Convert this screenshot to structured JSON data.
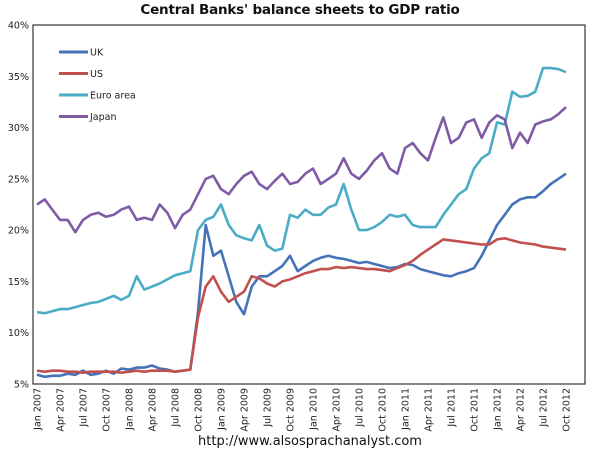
{
  "chart_data": {
    "type": "line",
    "title": "Central Banks' balance sheets to GDP ratio",
    "xlabel": "",
    "ylabel": "",
    "source_text": "http://www.alsosprachanalyst.com",
    "ylim": [
      5,
      40
    ],
    "y_ticks": [
      "5%",
      "10%",
      "15%",
      "20%",
      "25%",
      "30%",
      "35%",
      "40%"
    ],
    "y_tick_values": [
      5,
      10,
      15,
      20,
      25,
      30,
      35,
      40
    ],
    "x_tick_labels": [
      "Jan 2007",
      "Apr 2007",
      "Jul 2007",
      "Oct 2007",
      "Jan 2008",
      "Apr 2008",
      "Jul 2008",
      "Oct 2008",
      "Jan 2009",
      "Apr 2009",
      "Jul 2009",
      "Oct 2009",
      "Jan 2010",
      "Apr 2010",
      "Jul 2010",
      "Oct 2010",
      "Jan 2011",
      "Apr 2011",
      "Jul 2011",
      "Oct 2011",
      "Jan 2012",
      "Apr 2012",
      "Jul 2012",
      "Oct 2012"
    ],
    "x_start": "Jan 2007",
    "x_frequency": "monthly",
    "grid": false,
    "legend_position": "top-left",
    "series": [
      {
        "name": "UK",
        "color": "#4573b8",
        "values": [
          5.9,
          5.7,
          5.8,
          5.8,
          6.0,
          5.9,
          6.3,
          5.9,
          6.0,
          6.3,
          6.0,
          6.5,
          6.4,
          6.6,
          6.6,
          6.8,
          6.5,
          6.4,
          6.2,
          6.3,
          6.4,
          12.0,
          20.5,
          17.5,
          18.0,
          15.5,
          13.0,
          11.8,
          14.5,
          15.5,
          15.5,
          16.0,
          16.5,
          17.5,
          16.0,
          16.5,
          17.0,
          17.3,
          17.5,
          17.3,
          17.2,
          17.0,
          16.8,
          16.9,
          16.7,
          16.5,
          16.3,
          16.4,
          16.7,
          16.6,
          16.2,
          16.0,
          15.8,
          15.6,
          15.5,
          15.8,
          16.0,
          16.3,
          17.5,
          19.0,
          20.5,
          21.5,
          22.5,
          23.0,
          23.2,
          23.2,
          23.8,
          24.5,
          25.0,
          25.5
        ]
      },
      {
        "name": "US",
        "color": "#c0504d",
        "values": [
          6.3,
          6.2,
          6.3,
          6.3,
          6.2,
          6.2,
          6.1,
          6.2,
          6.2,
          6.2,
          6.2,
          6.1,
          6.2,
          6.3,
          6.2,
          6.3,
          6.3,
          6.3,
          6.2,
          6.3,
          6.4,
          11.5,
          14.5,
          15.5,
          14.0,
          13.0,
          13.5,
          14.0,
          15.5,
          15.3,
          14.8,
          14.5,
          15.0,
          15.2,
          15.5,
          15.8,
          16.0,
          16.2,
          16.2,
          16.4,
          16.3,
          16.4,
          16.3,
          16.2,
          16.2,
          16.1,
          16.0,
          16.3,
          16.6,
          17.0,
          17.6,
          18.1,
          18.6,
          19.1,
          19.0,
          18.9,
          18.8,
          18.7,
          18.6,
          18.6,
          19.1,
          19.2,
          19.0,
          18.8,
          18.7,
          18.6,
          18.4,
          18.3,
          18.2,
          18.1
        ]
      },
      {
        "name": "Euro area",
        "color": "#4aacc5",
        "values": [
          12.0,
          11.9,
          12.1,
          12.3,
          12.3,
          12.5,
          12.7,
          12.9,
          13.0,
          13.3,
          13.6,
          13.2,
          13.6,
          15.5,
          14.2,
          14.5,
          14.8,
          15.2,
          15.6,
          15.8,
          16.0,
          20.0,
          21.0,
          21.3,
          22.5,
          20.5,
          19.5,
          19.2,
          19.0,
          20.5,
          18.5,
          18.0,
          18.2,
          21.5,
          21.2,
          22.0,
          21.5,
          21.5,
          22.2,
          22.5,
          24.5,
          22.0,
          20.0,
          20.0,
          20.3,
          20.8,
          21.5,
          21.3,
          21.5,
          20.5,
          20.3,
          20.3,
          20.3,
          21.5,
          22.5,
          23.5,
          24.0,
          26.0,
          27.0,
          27.5,
          30.5,
          30.3,
          33.5,
          33.0,
          33.1,
          33.5,
          35.8,
          35.8,
          35.7,
          35.4
        ]
      },
      {
        "name": "Japan",
        "color": "#7f5ba6",
        "values": [
          22.5,
          23.0,
          22.0,
          21.0,
          21.0,
          19.8,
          21.0,
          21.5,
          21.7,
          21.3,
          21.5,
          22.0,
          22.3,
          21.0,
          21.2,
          21.0,
          22.5,
          21.7,
          20.2,
          21.5,
          22.0,
          23.5,
          25.0,
          25.3,
          24.0,
          23.5,
          24.5,
          25.3,
          25.7,
          24.5,
          24.0,
          24.8,
          25.5,
          24.5,
          24.7,
          25.5,
          26.0,
          24.5,
          25.0,
          25.5,
          27.0,
          25.5,
          25.0,
          25.8,
          26.8,
          27.5,
          26.0,
          25.5,
          28.0,
          28.5,
          27.5,
          26.8,
          29.0,
          31.0,
          28.5,
          29.0,
          30.5,
          30.8,
          29.0,
          30.5,
          31.2,
          30.8,
          28.0,
          29.5,
          28.5,
          30.3,
          30.6,
          30.8,
          31.3,
          32.0
        ]
      }
    ]
  }
}
